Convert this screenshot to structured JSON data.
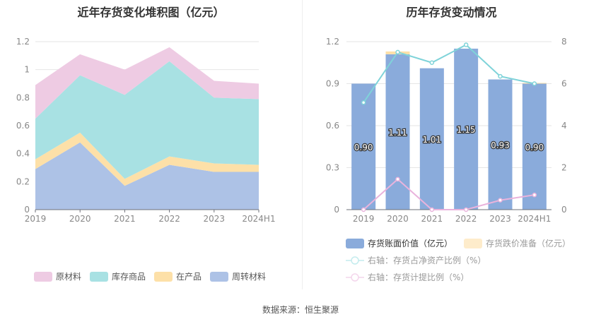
{
  "chart_data": [
    {
      "type": "area",
      "title": "近年存货变化堆积图（亿元）",
      "categories": [
        "2019",
        "2020",
        "2021",
        "2022",
        "2023",
        "2024H1"
      ],
      "ylim": [
        0,
        1.2
      ],
      "yticks": [
        0,
        0.2,
        0.4,
        0.6,
        0.8,
        1,
        1.2
      ],
      "grid": true,
      "legend_position": "bottom",
      "stacked": true,
      "series": [
        {
          "name": "周转材料",
          "color": "#adc2e6",
          "values": [
            0.29,
            0.48,
            0.17,
            0.32,
            0.27,
            0.27
          ]
        },
        {
          "name": "在产品",
          "color": "#fde0a8",
          "values": [
            0.07,
            0.07,
            0.05,
            0.06,
            0.06,
            0.05
          ]
        },
        {
          "name": "库存商品",
          "color": "#a8e1e3",
          "values": [
            0.29,
            0.41,
            0.6,
            0.68,
            0.47,
            0.47
          ]
        },
        {
          "name": "原材料",
          "color": "#eecbe3",
          "values": [
            0.24,
            0.15,
            0.18,
            0.1,
            0.12,
            0.11
          ]
        }
      ],
      "legend_order": [
        "原材料",
        "库存商品",
        "在产品",
        "周转材料"
      ]
    },
    {
      "type": "bar+line",
      "title": "历年存货变动情况",
      "categories": [
        "2019",
        "2020",
        "2021",
        "2022",
        "2023",
        "2024H1"
      ],
      "ylim": [
        0,
        1.2
      ],
      "yticks": [
        0,
        0.3,
        0.6,
        0.9,
        1.2
      ],
      "y2lim": [
        0,
        8
      ],
      "y2ticks": [
        0,
        2,
        4,
        6,
        8
      ],
      "grid": true,
      "legend_position": "bottom",
      "bars": [
        {
          "name": "存货账面价值（亿元）",
          "color": "#8aabdb",
          "values": [
            0.9,
            1.11,
            1.01,
            1.15,
            0.93,
            0.9
          ],
          "labels": [
            "0.90",
            "1.11",
            "1.01",
            "1.15",
            "0.93",
            "0.90"
          ]
        },
        {
          "name": "存货跌价准备（亿元）",
          "color": "#fde0a8",
          "values": [
            0,
            0.02,
            0,
            0,
            0,
            0.005
          ]
        }
      ],
      "lines": [
        {
          "name": "右轴：存货占净资产比例（%）",
          "color": "#7fd3d9",
          "axis": "right",
          "values": [
            5.1,
            7.5,
            7.0,
            7.85,
            6.35,
            6.0
          ]
        },
        {
          "name": "右轴：存货计提比例（%）",
          "color": "#e9b3dc",
          "axis": "right",
          "values": [
            0,
            1.45,
            0,
            0,
            0.45,
            0.7
          ]
        }
      ]
    }
  ],
  "source": "数据来源：恒生聚源"
}
